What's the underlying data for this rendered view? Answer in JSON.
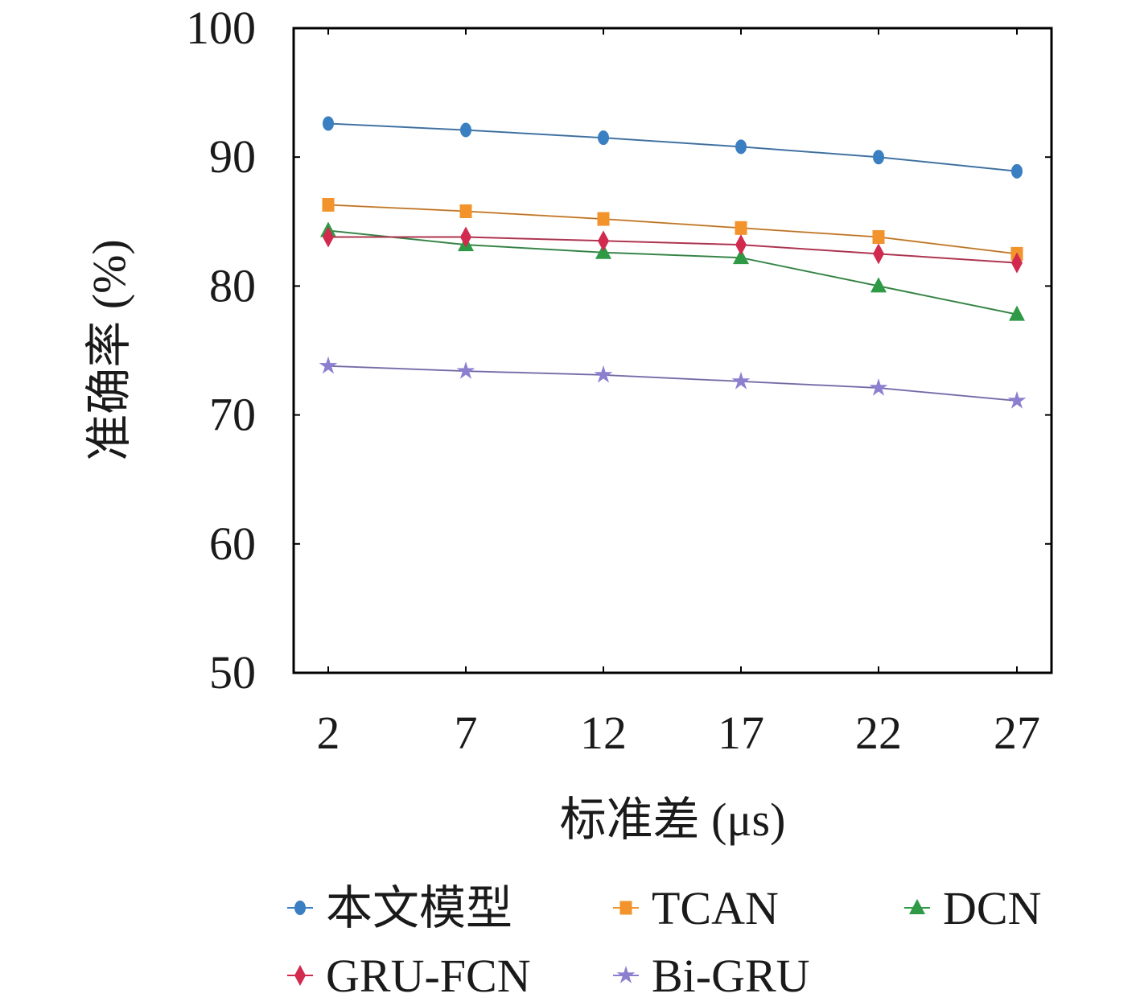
{
  "chart_data": {
    "type": "line",
    "xlabel": "标准差 (μs)",
    "ylabel": "准确率 (%)",
    "categories": [
      "2",
      "7",
      "12",
      "17",
      "22",
      "27"
    ],
    "ylim": [
      50,
      100
    ],
    "yticks": [
      "50",
      "60",
      "70",
      "80",
      "90",
      "100"
    ],
    "grid": false,
    "legend_position": "bottom",
    "series": [
      {
        "name": "本文模型",
        "values": [
          92.6,
          92.1,
          91.5,
          90.8,
          90.0,
          88.9
        ],
        "color": "#3a7fc1",
        "marker": "circle"
      },
      {
        "name": "TCAN",
        "values": [
          86.3,
          85.8,
          85.2,
          84.5,
          83.8,
          82.5
        ],
        "color": "#f2932b",
        "marker": "square"
      },
      {
        "name": "DCN",
        "values": [
          84.3,
          83.2,
          82.6,
          82.2,
          80.0,
          77.8
        ],
        "color": "#2e9a45",
        "marker": "triangle"
      },
      {
        "name": "GRU-FCN",
        "values": [
          83.8,
          83.8,
          83.5,
          83.2,
          82.5,
          81.8
        ],
        "color": "#d2294f",
        "marker": "diamond"
      },
      {
        "name": "Bi-GRU",
        "values": [
          73.8,
          73.4,
          73.1,
          72.6,
          72.1,
          71.1
        ],
        "color": "#8d7fd0",
        "marker": "star"
      }
    ]
  }
}
